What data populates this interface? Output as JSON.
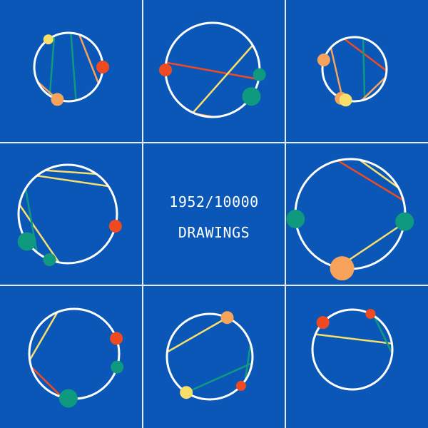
{
  "caption": {
    "count": "1952/10000",
    "label": "DRAWINGS"
  },
  "colors": {
    "background": "#0a57b8",
    "grid": "#e6ecf5",
    "circle": "#ffffff",
    "red": "#f04a23",
    "teal": "#0f9a80",
    "orange": "#f7a35c",
    "yellow": "#f7df6a"
  },
  "cells": [
    {
      "id": "c1",
      "lines": [
        {
          "color": "teal",
          "a": -2.0,
          "b": 2.15
        },
        {
          "color": "teal",
          "a": -1.5,
          "b": 1.35
        },
        {
          "color": "orange",
          "a": -1.25,
          "b": 0.5
        },
        {
          "color": "orange",
          "a": 2.7,
          "b": 1.9
        }
      ],
      "dots": [
        {
          "color": "yellow",
          "angle": -2.2,
          "size": "s"
        },
        {
          "color": "red",
          "angle": 0.0,
          "size": "m"
        },
        {
          "color": "orange",
          "angle": 1.9,
          "size": "m"
        }
      ]
    },
    {
      "id": "c2",
      "lines": [
        {
          "color": "red",
          "a": 3.3,
          "b": 0.2
        },
        {
          "color": "yellow",
          "a": -0.55,
          "b": 2.0
        },
        {
          "color": "orange",
          "a": 1.95,
          "b": 1.55
        },
        {
          "color": "teal",
          "a": -1.45,
          "b": -1.2
        }
      ],
      "dots": [
        {
          "color": "red",
          "angle": 3.14,
          "size": "m"
        },
        {
          "color": "teal",
          "angle": 0.1,
          "size": "m"
        },
        {
          "color": "teal",
          "angle": 0.6,
          "size": "l"
        }
      ]
    },
    {
      "id": "c3",
      "lines": [
        {
          "color": "red",
          "a": -1.9,
          "b": 0.05
        },
        {
          "color": "teal",
          "a": -1.3,
          "b": 1.25
        },
        {
          "color": "orange",
          "a": 0.25,
          "b": 1.35
        },
        {
          "color": "orange",
          "a": -2.4,
          "b": 1.95
        }
      ],
      "dots": [
        {
          "color": "orange",
          "angle": -2.85,
          "size": "m"
        },
        {
          "color": "orange",
          "angle": 2.0,
          "size": "m"
        },
        {
          "color": "yellow",
          "angle": 1.85,
          "size": "m"
        }
      ]
    },
    {
      "id": "c4",
      "lines": [
        {
          "color": "yellow",
          "a": -2.25,
          "b": -0.6
        },
        {
          "color": "yellow",
          "a": -2.05,
          "b": -0.95
        },
        {
          "color": "yellow",
          "a": -2.95,
          "b": 1.75
        },
        {
          "color": "teal",
          "a": -2.6,
          "b": 2.25
        }
      ],
      "dots": [
        {
          "color": "red",
          "angle": 0.25,
          "size": "m"
        },
        {
          "color": "teal",
          "angle": 2.55,
          "size": "l"
        },
        {
          "color": "teal",
          "angle": 1.95,
          "size": "m"
        }
      ]
    },
    {
      "id": "c6",
      "lines": [
        {
          "color": "red",
          "a": -1.8,
          "b": -0.25
        },
        {
          "color": "yellow",
          "a": -1.4,
          "b": -0.5
        },
        {
          "color": "yellow",
          "a": 0.16,
          "b": 1.8
        }
      ],
      "dots": [
        {
          "color": "teal",
          "angle": 3.05,
          "size": "l"
        },
        {
          "color": "teal",
          "angle": 0.14,
          "size": "l"
        },
        {
          "color": "orange",
          "angle": 1.72,
          "size": "xl"
        }
      ]
    },
    {
      "id": "c7",
      "lines": [
        {
          "color": "yellow",
          "a": -1.95,
          "b": 3.0
        },
        {
          "color": "red",
          "a": 2.85,
          "b": 1.85
        }
      ],
      "dots": [
        {
          "color": "red",
          "angle": -0.35,
          "size": "m"
        },
        {
          "color": "teal",
          "angle": 0.3,
          "size": "m"
        },
        {
          "color": "teal",
          "angle": 1.7,
          "size": "l"
        }
      ]
    },
    {
      "id": "c8",
      "lines": [
        {
          "color": "yellow",
          "a": -1.15,
          "b": 3.25
        },
        {
          "color": "teal",
          "a": 0.15,
          "b": 2.15
        },
        {
          "color": "teal",
          "a": -0.3,
          "b": 0.6
        }
      ],
      "dots": [
        {
          "color": "orange",
          "angle": -1.15,
          "size": "m"
        },
        {
          "color": "red",
          "angle": 0.75,
          "size": "s"
        },
        {
          "color": "yellow",
          "angle": 2.15,
          "size": "m"
        }
      ]
    },
    {
      "id": "c9",
      "lines": [
        {
          "color": "yellow",
          "a": -2.75,
          "b": -0.15
        },
        {
          "color": "teal",
          "a": -1.0,
          "b": 0.1
        }
      ],
      "dots": [
        {
          "color": "red",
          "angle": -2.4,
          "size": "m"
        },
        {
          "color": "red",
          "angle": -1.1,
          "size": "s"
        }
      ]
    }
  ]
}
